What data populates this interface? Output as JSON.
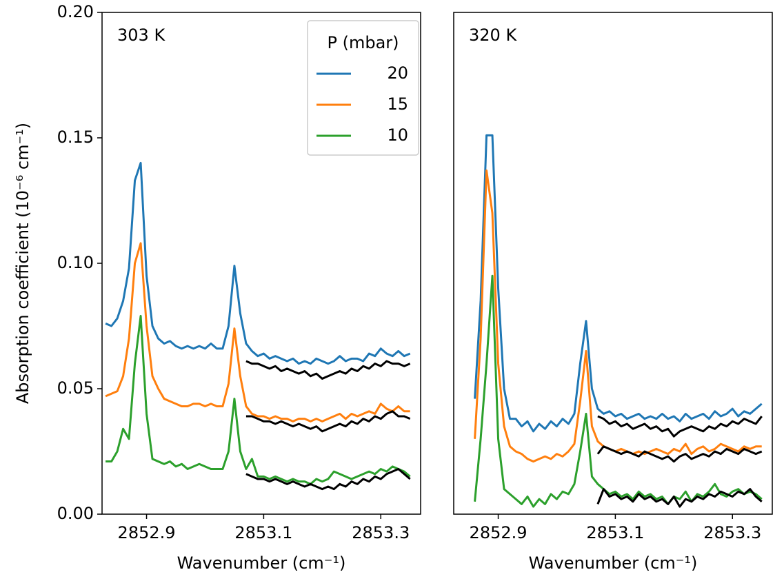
{
  "chart_data": [
    {
      "type": "line",
      "annotation": "303 K",
      "xlabel": "Wavenumber (cm⁻¹)",
      "ylabel": "Absorption coefficient (10⁻⁶ cm⁻¹)",
      "legend": "upper right",
      "legend_title": "P (mbar)",
      "xlim": [
        2852.824,
        2853.368
      ],
      "ylim": [
        0,
        0.2
      ],
      "xticks": [
        2852.9,
        2853.1,
        2853.3
      ],
      "yticks": [
        {
          "value": 0,
          "label": "0.00"
        },
        0.05,
        {
          "value": 0.1,
          "label": "0.10"
        },
        0.15,
        {
          "value": 0.2,
          "label": "0.20"
        }
      ],
      "x": [
        2852.83,
        2852.84,
        2852.85,
        2852.86,
        2852.87,
        2852.88,
        2852.89,
        2852.9,
        2852.91,
        2852.92,
        2852.93,
        2852.94,
        2852.95,
        2852.96,
        2852.97,
        2852.98,
        2852.99,
        2853.0,
        2853.01,
        2853.02,
        2853.03,
        2853.04,
        2853.05,
        2853.06,
        2853.07,
        2853.08,
        2853.09,
        2853.1,
        2853.11,
        2853.12,
        2853.13,
        2853.14,
        2853.15,
        2853.16,
        2853.17,
        2853.18,
        2853.19,
        2853.2,
        2853.21,
        2853.22,
        2853.23,
        2853.24,
        2853.25,
        2853.26,
        2853.27,
        2853.28,
        2853.29,
        2853.3,
        2853.31,
        2853.32,
        2853.33,
        2853.34,
        2853.35
      ],
      "series": [
        {
          "name": "20",
          "color": "#1f77b4",
          "values": [
            0.076,
            0.075,
            0.078,
            0.085,
            0.098,
            0.133,
            0.14,
            0.095,
            0.075,
            0.07,
            0.068,
            0.069,
            0.067,
            0.066,
            0.067,
            0.066,
            0.067,
            0.066,
            0.068,
            0.066,
            0.066,
            0.075,
            0.099,
            0.08,
            0.068,
            0.065,
            0.063,
            0.064,
            0.062,
            0.063,
            0.062,
            0.061,
            0.062,
            0.06,
            0.061,
            0.06,
            0.062,
            0.061,
            0.06,
            0.061,
            0.063,
            0.061,
            0.062,
            0.062,
            0.061,
            0.064,
            0.063,
            0.066,
            0.064,
            0.063,
            0.065,
            0.063,
            0.064
          ]
        },
        {
          "name": "15",
          "color": "#ff7f0e",
          "values": [
            0.047,
            0.048,
            0.049,
            0.055,
            0.07,
            0.1,
            0.108,
            0.075,
            0.055,
            0.05,
            0.046,
            0.045,
            0.044,
            0.043,
            0.043,
            0.044,
            0.044,
            0.043,
            0.044,
            0.043,
            0.043,
            0.052,
            0.074,
            0.055,
            0.043,
            0.04,
            0.039,
            0.039,
            0.038,
            0.039,
            0.038,
            0.038,
            0.037,
            0.038,
            0.038,
            0.037,
            0.038,
            0.037,
            0.038,
            0.039,
            0.04,
            0.038,
            0.04,
            0.039,
            0.04,
            0.041,
            0.04,
            0.044,
            0.042,
            0.041,
            0.043,
            0.041,
            0.041
          ]
        },
        {
          "name": "10",
          "color": "#2ca02c",
          "values": [
            0.021,
            0.021,
            0.025,
            0.034,
            0.03,
            0.06,
            0.079,
            0.04,
            0.022,
            0.021,
            0.02,
            0.021,
            0.019,
            0.02,
            0.018,
            0.019,
            0.02,
            0.019,
            0.018,
            0.018,
            0.018,
            0.025,
            0.046,
            0.025,
            0.018,
            0.022,
            0.015,
            0.015,
            0.014,
            0.015,
            0.014,
            0.013,
            0.014,
            0.013,
            0.013,
            0.012,
            0.014,
            0.013,
            0.014,
            0.017,
            0.016,
            0.015,
            0.014,
            0.015,
            0.016,
            0.017,
            0.016,
            0.018,
            0.017,
            0.019,
            0.018,
            0.017,
            0.015
          ]
        },
        {
          "color": "#000000",
          "values": [
            null,
            null,
            null,
            null,
            null,
            null,
            null,
            null,
            null,
            null,
            null,
            null,
            null,
            null,
            null,
            null,
            null,
            null,
            null,
            null,
            null,
            null,
            null,
            null,
            0.061,
            0.06,
            0.06,
            0.059,
            0.058,
            0.059,
            0.057,
            0.058,
            0.057,
            0.056,
            0.057,
            0.055,
            0.056,
            0.054,
            0.055,
            0.056,
            0.057,
            0.056,
            0.058,
            0.057,
            0.059,
            0.058,
            0.06,
            0.059,
            0.061,
            0.06,
            0.06,
            0.059,
            0.06
          ]
        },
        {
          "color": "#000000",
          "values": [
            null,
            null,
            null,
            null,
            null,
            null,
            null,
            null,
            null,
            null,
            null,
            null,
            null,
            null,
            null,
            null,
            null,
            null,
            null,
            null,
            null,
            null,
            null,
            null,
            0.039,
            0.039,
            0.038,
            0.037,
            0.037,
            0.036,
            0.037,
            0.036,
            0.035,
            0.036,
            0.035,
            0.034,
            0.035,
            0.033,
            0.034,
            0.035,
            0.036,
            0.035,
            0.037,
            0.036,
            0.038,
            0.037,
            0.039,
            0.038,
            0.04,
            0.041,
            0.039,
            0.039,
            0.038
          ]
        },
        {
          "color": "#000000",
          "values": [
            null,
            null,
            null,
            null,
            null,
            null,
            null,
            null,
            null,
            null,
            null,
            null,
            null,
            null,
            null,
            null,
            null,
            null,
            null,
            null,
            null,
            null,
            null,
            null,
            0.016,
            0.015,
            0.014,
            0.014,
            0.013,
            0.014,
            0.013,
            0.012,
            0.013,
            0.012,
            0.011,
            0.012,
            0.011,
            0.01,
            0.011,
            0.01,
            0.012,
            0.011,
            0.013,
            0.012,
            0.014,
            0.013,
            0.015,
            0.014,
            0.016,
            0.017,
            0.018,
            0.016,
            0.014
          ]
        }
      ]
    },
    {
      "type": "line",
      "annotation": "320 K",
      "xlabel": "Wavenumber (cm⁻¹)",
      "xlim": [
        2852.824,
        2853.368
      ],
      "ylim": [
        0,
        0.2
      ],
      "xticks": [
        2852.9,
        2853.1,
        2853.3
      ],
      "x": [
        2852.83,
        2852.84,
        2852.85,
        2852.86,
        2852.87,
        2852.88,
        2852.89,
        2852.9,
        2852.91,
        2852.92,
        2852.93,
        2852.94,
        2852.95,
        2852.96,
        2852.97,
        2852.98,
        2852.99,
        2853.0,
        2853.01,
        2853.02,
        2853.03,
        2853.04,
        2853.05,
        2853.06,
        2853.07,
        2853.08,
        2853.09,
        2853.1,
        2853.11,
        2853.12,
        2853.13,
        2853.14,
        2853.15,
        2853.16,
        2853.17,
        2853.18,
        2853.19,
        2853.2,
        2853.21,
        2853.22,
        2853.23,
        2853.24,
        2853.25,
        2853.26,
        2853.27,
        2853.28,
        2853.29,
        2853.3,
        2853.31,
        2853.32,
        2853.33,
        2853.34,
        2853.35
      ],
      "series": [
        {
          "color": "#1f77b4",
          "values": [
            null,
            null,
            null,
            0.046,
            0.085,
            0.151,
            0.151,
            0.09,
            0.05,
            0.038,
            0.038,
            0.035,
            0.037,
            0.033,
            0.036,
            0.034,
            0.037,
            0.035,
            0.038,
            0.036,
            0.04,
            0.06,
            0.077,
            0.05,
            0.042,
            0.04,
            0.041,
            0.039,
            0.04,
            0.038,
            0.039,
            0.04,
            0.038,
            0.039,
            0.038,
            0.04,
            0.038,
            0.039,
            0.037,
            0.04,
            0.038,
            0.039,
            0.04,
            0.038,
            0.041,
            0.039,
            0.04,
            0.042,
            0.039,
            0.041,
            0.04,
            0.042,
            0.044
          ]
        },
        {
          "color": "#ff7f0e",
          "values": [
            null,
            null,
            null,
            0.03,
            0.07,
            0.137,
            0.12,
            0.06,
            0.035,
            0.027,
            0.025,
            0.024,
            0.022,
            0.021,
            0.022,
            0.023,
            0.022,
            0.024,
            0.023,
            0.025,
            0.028,
            0.045,
            0.065,
            0.035,
            0.029,
            0.027,
            0.026,
            0.025,
            0.026,
            0.025,
            0.024,
            0.025,
            0.024,
            0.025,
            0.026,
            0.025,
            0.024,
            0.026,
            0.025,
            0.028,
            0.024,
            0.026,
            0.027,
            0.025,
            0.026,
            0.028,
            0.027,
            0.026,
            0.025,
            0.027,
            0.026,
            0.027,
            0.027
          ]
        },
        {
          "color": "#2ca02c",
          "values": [
            null,
            null,
            null,
            0.005,
            0.03,
            0.06,
            0.095,
            0.03,
            0.01,
            0.008,
            0.006,
            0.004,
            0.007,
            0.003,
            0.006,
            0.004,
            0.008,
            0.006,
            0.009,
            0.008,
            0.012,
            0.025,
            0.04,
            0.015,
            0.012,
            0.01,
            0.008,
            0.009,
            0.007,
            0.008,
            0.006,
            0.009,
            0.007,
            0.008,
            0.006,
            0.007,
            0.004,
            0.007,
            0.006,
            0.009,
            0.005,
            0.008,
            0.007,
            0.009,
            0.012,
            0.008,
            0.007,
            0.009,
            0.01,
            0.008,
            0.009,
            0.008,
            0.006
          ]
        },
        {
          "color": "#000000",
          "values": [
            null,
            null,
            null,
            null,
            null,
            null,
            null,
            null,
            null,
            null,
            null,
            null,
            null,
            null,
            null,
            null,
            null,
            null,
            null,
            null,
            null,
            null,
            null,
            null,
            0.039,
            0.038,
            0.036,
            0.037,
            0.035,
            0.036,
            0.034,
            0.035,
            0.036,
            0.034,
            0.035,
            0.033,
            0.034,
            0.031,
            0.033,
            0.034,
            0.035,
            0.034,
            0.033,
            0.035,
            0.034,
            0.036,
            0.035,
            0.037,
            0.036,
            0.038,
            0.037,
            0.036,
            0.039
          ]
        },
        {
          "color": "#000000",
          "values": [
            null,
            null,
            null,
            null,
            null,
            null,
            null,
            null,
            null,
            null,
            null,
            null,
            null,
            null,
            null,
            null,
            null,
            null,
            null,
            null,
            null,
            null,
            null,
            null,
            0.024,
            0.027,
            0.026,
            0.025,
            0.024,
            0.025,
            0.024,
            0.023,
            0.025,
            0.024,
            0.023,
            0.022,
            0.023,
            0.021,
            0.023,
            0.024,
            0.022,
            0.023,
            0.024,
            0.023,
            0.025,
            0.024,
            0.026,
            0.025,
            0.024,
            0.026,
            0.025,
            0.024,
            0.025
          ]
        },
        {
          "color": "#000000",
          "values": [
            null,
            null,
            null,
            null,
            null,
            null,
            null,
            null,
            null,
            null,
            null,
            null,
            null,
            null,
            null,
            null,
            null,
            null,
            null,
            null,
            null,
            null,
            null,
            null,
            0.004,
            0.01,
            0.007,
            0.008,
            0.006,
            0.007,
            0.005,
            0.008,
            0.006,
            0.007,
            0.005,
            0.006,
            0.004,
            0.007,
            0.003,
            0.006,
            0.005,
            0.007,
            0.006,
            0.008,
            0.007,
            0.009,
            0.008,
            0.007,
            0.009,
            0.008,
            0.01,
            0.007,
            0.005
          ]
        }
      ]
    }
  ]
}
